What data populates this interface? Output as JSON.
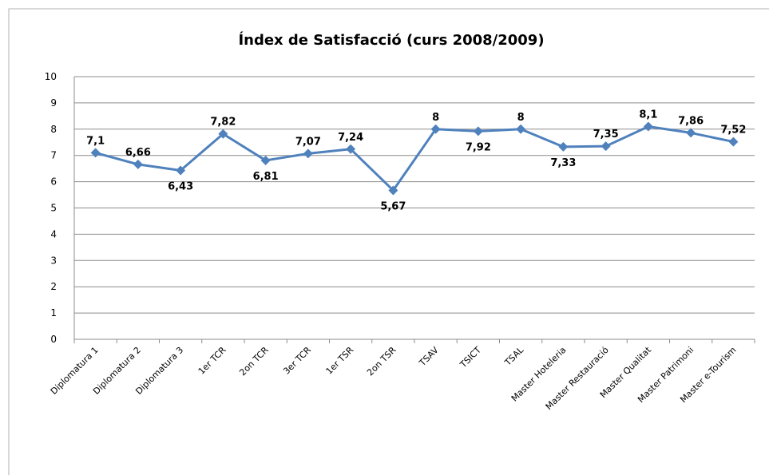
{
  "chart_data": {
    "type": "line",
    "title": "Índex de Satisfacció (curs 2008/2009)",
    "categories": [
      "Diplomatura 1",
      "Diplomatura 2",
      "Diplomatura 3",
      "1er TCR",
      "2on TCR",
      "3er TCR",
      "1er TSR",
      "2on TSR",
      "TSAV",
      "TSICT",
      "TSAL",
      "Master Hoteleria",
      "Master Restauració",
      "Master Qualitat",
      "Master Patrimoni",
      "Master e-Tourism"
    ],
    "series": [
      {
        "name": "Índex",
        "color": "#4f81bd",
        "values": [
          7.1,
          6.66,
          6.43,
          7.82,
          6.81,
          7.07,
          7.24,
          5.67,
          8,
          7.92,
          8,
          7.33,
          7.35,
          8.1,
          7.86,
          7.52
        ],
        "value_labels": [
          "7,1",
          "6,66",
          "6,43",
          "7,82",
          "6,81",
          "7,07",
          "7,24",
          "5,67",
          "8",
          "7,92",
          "8",
          "7,33",
          "7,35",
          "8,1",
          "7,86",
          "7,52"
        ]
      }
    ],
    "ylim": [
      0,
      10
    ],
    "yticks": [
      0,
      1,
      2,
      3,
      4,
      5,
      6,
      7,
      8,
      9,
      10
    ],
    "grid": true
  }
}
